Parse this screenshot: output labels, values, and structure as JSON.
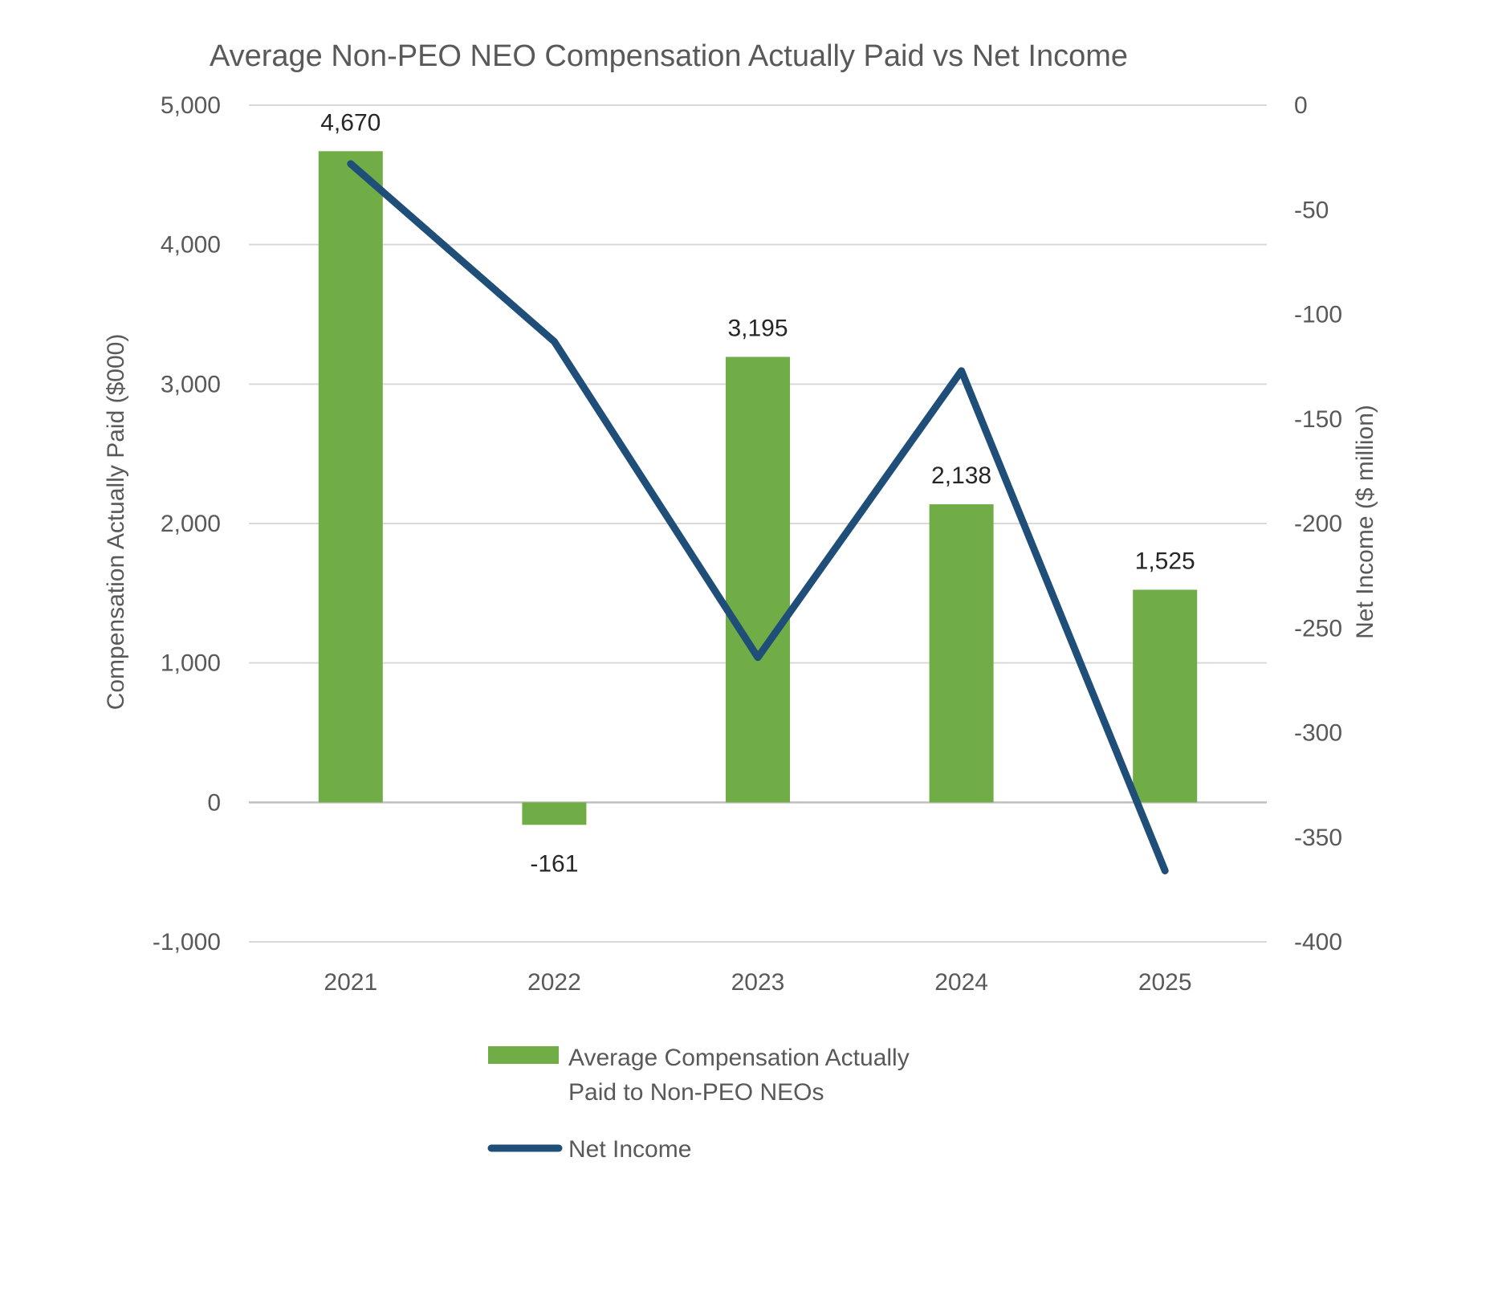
{
  "chart_data": {
    "type": "bar",
    "title": "Average Non-PEO NEO Compensation Actually Paid vs Net Income",
    "categories": [
      "2021",
      "2022",
      "2023",
      "2024",
      "2025"
    ],
    "y_left": {
      "label": "Compensation Actually Paid ($000)",
      "ylim": [
        -1000,
        5000
      ],
      "ticks": [
        5000,
        4000,
        3000,
        2000,
        1000,
        0,
        -1000
      ],
      "tick_labels": [
        "5,000",
        "4,000",
        "3,000",
        "2,000",
        "1,000",
        "0",
        "-1,000"
      ]
    },
    "y_right": {
      "label": "Net Income ($ million)",
      "ylim": [
        -400,
        0
      ],
      "ticks": [
        0,
        -50,
        -100,
        -150,
        -200,
        -250,
        -300,
        -350,
        -400
      ],
      "tick_labels": [
        "0",
        "-50",
        "-100",
        "-150",
        "-200",
        "-250",
        "-300",
        "-350",
        "-400"
      ]
    },
    "grid": true,
    "legend_position": "bottom",
    "series": [
      {
        "name": "Average Compensation Actually Paid to Non-PEO NEOs",
        "legend_lines": [
          "Average Compensation Actually",
          "Paid to Non-PEO NEOs"
        ],
        "type": "bar",
        "axis": "left",
        "color": "#70AD47",
        "values": [
          4670,
          -161,
          3195,
          2138,
          1525
        ],
        "data_labels": [
          "4,670",
          "-161",
          "3,195",
          "2,138",
          "1,525"
        ]
      },
      {
        "name": "Net Income",
        "type": "line",
        "axis": "right",
        "color": "#1F4E79",
        "values": [
          -28,
          -113,
          -264,
          -127,
          -366
        ]
      }
    ]
  }
}
